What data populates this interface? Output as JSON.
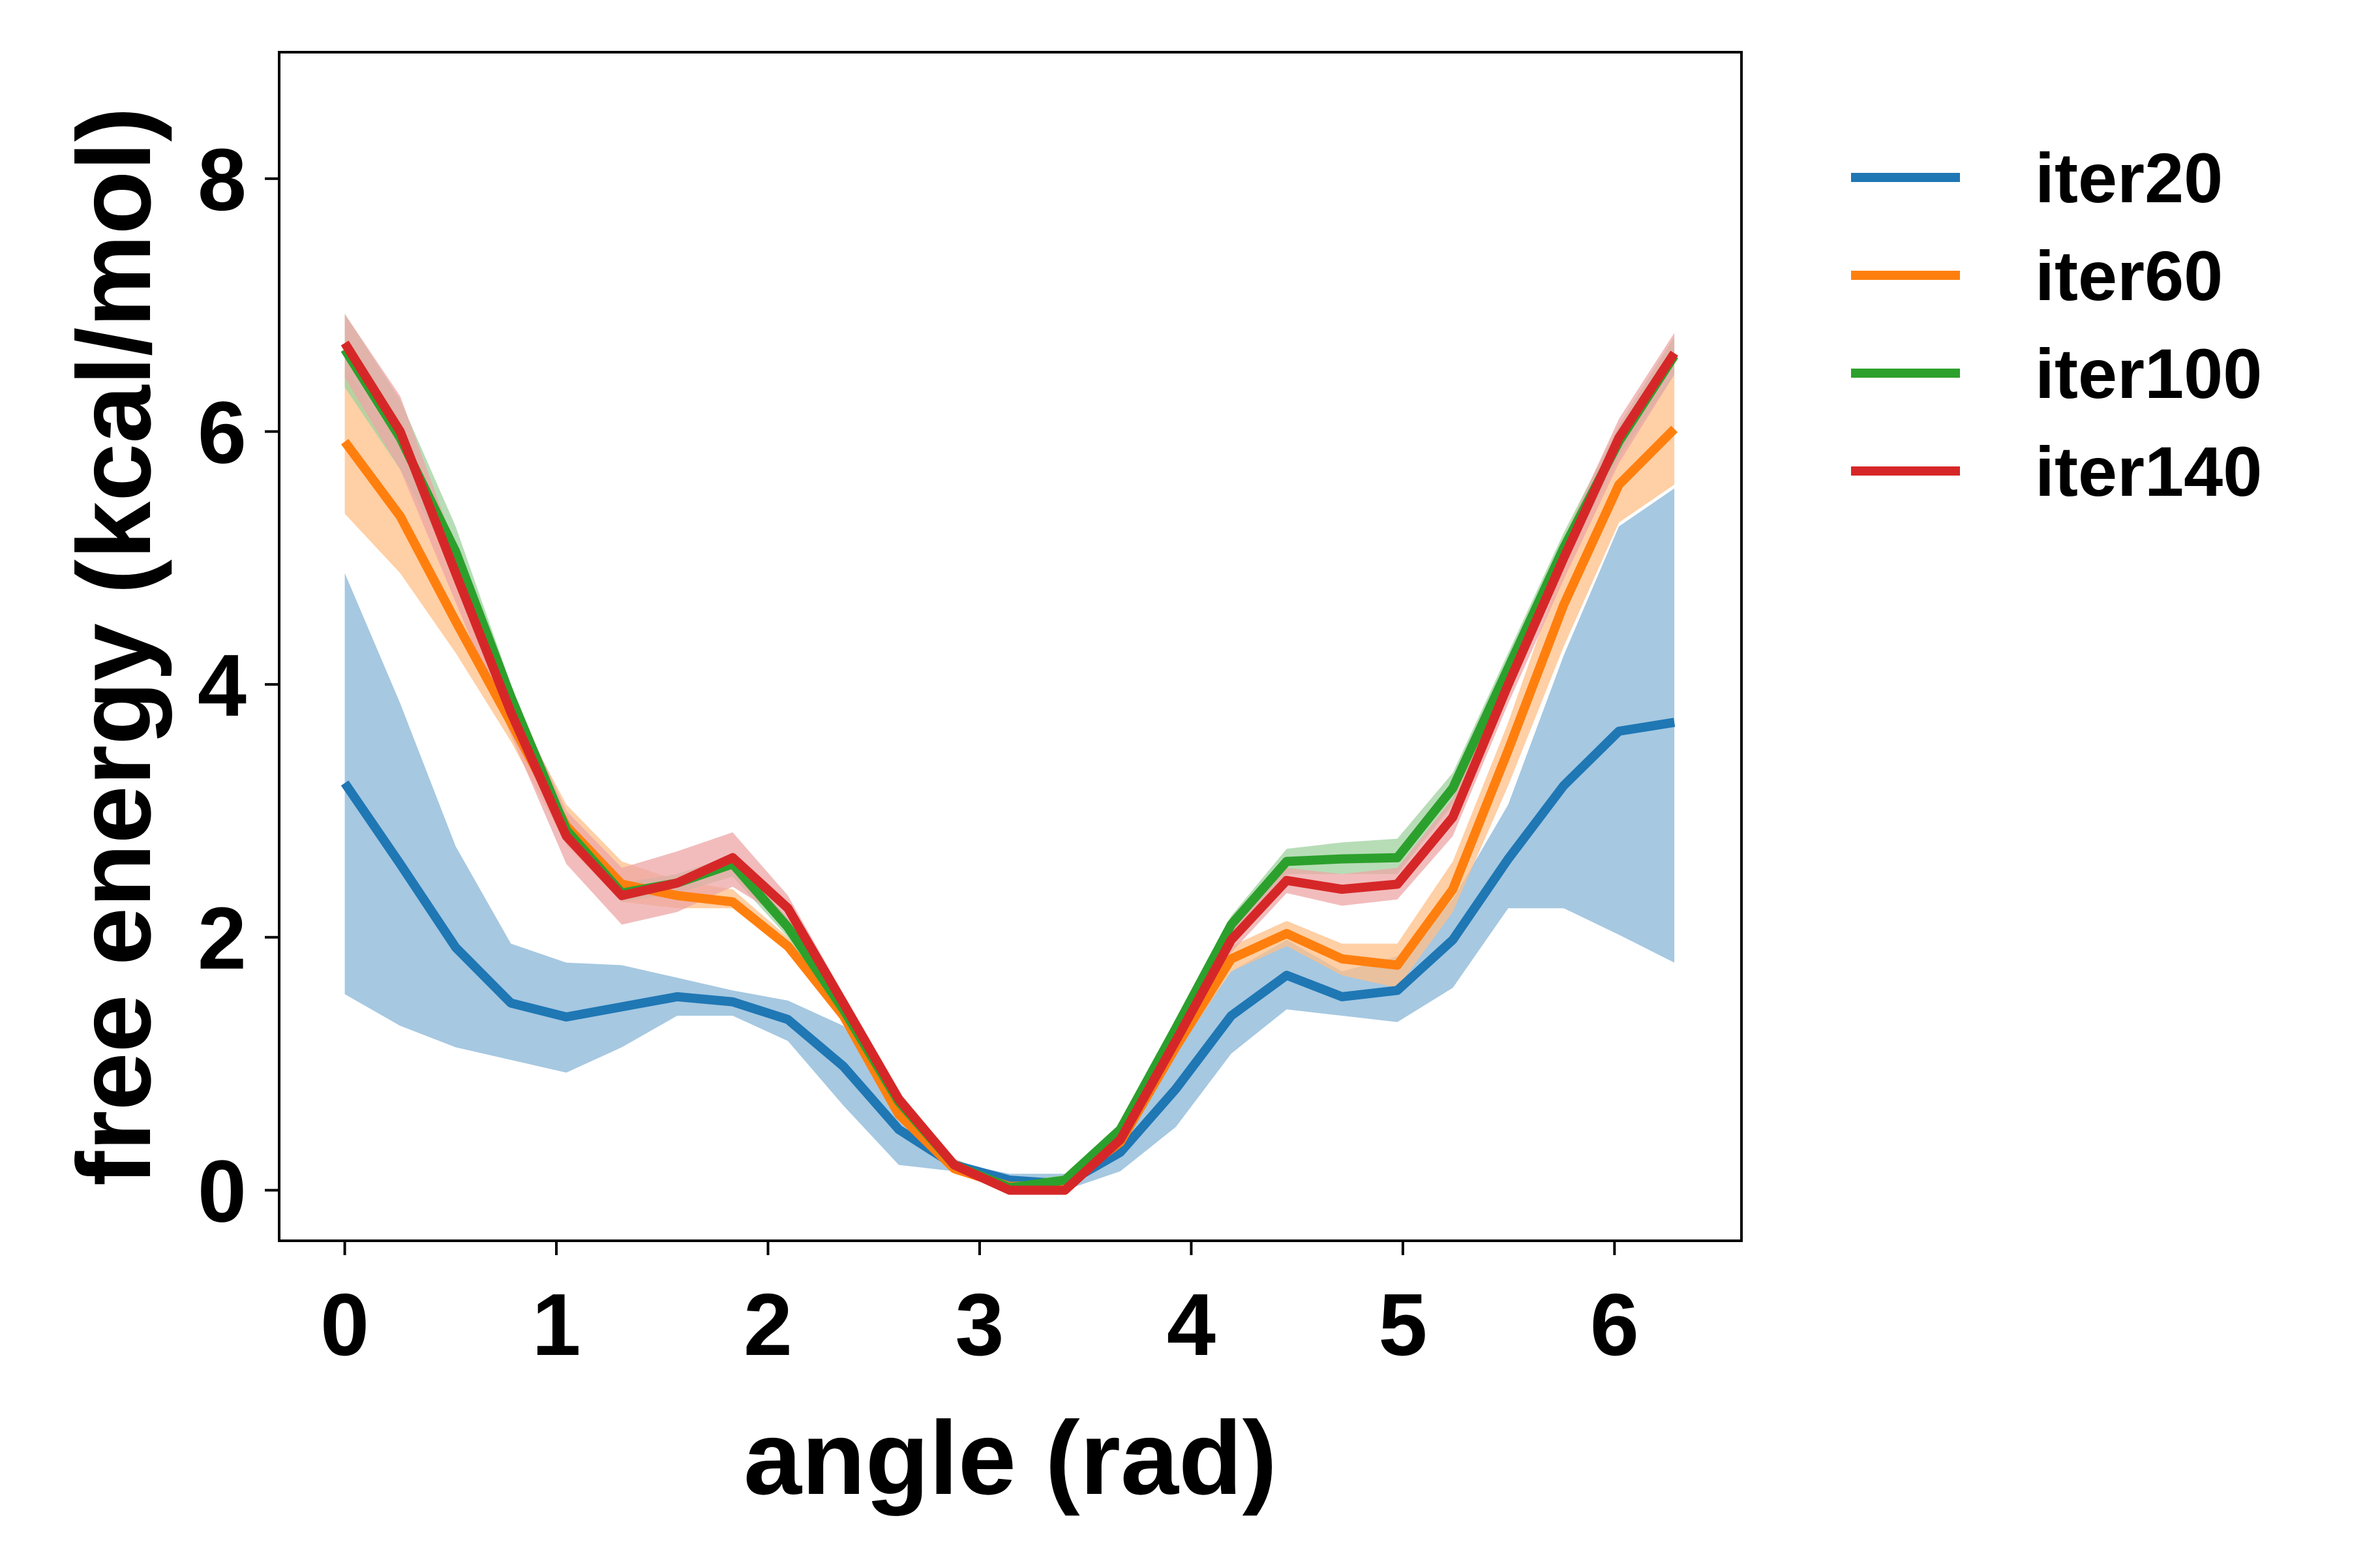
{
  "chart_data": {
    "type": "line",
    "xlabel": "angle (rad)",
    "ylabel": "free energy (kcal/mol)",
    "xlim": [
      -0.31,
      6.6
    ],
    "ylim": [
      -0.4,
      9.0
    ],
    "xticks": [
      0,
      1,
      2,
      3,
      4,
      5,
      6
    ],
    "yticks": [
      0,
      2,
      4,
      6,
      8
    ],
    "grid": false,
    "legend_position": "outside right, top",
    "x": [
      0,
      0.262,
      0.524,
      0.785,
      1.047,
      1.309,
      1.571,
      1.833,
      2.094,
      2.356,
      2.618,
      2.88,
      3.142,
      3.403,
      3.665,
      3.927,
      4.189,
      4.451,
      4.712,
      4.974,
      5.236,
      5.498,
      5.76,
      6.021,
      6.283
    ],
    "series": [
      {
        "name": "iter20",
        "color": "#1f77b4",
        "band_color": "#a6c8e1",
        "values": [
          3.22,
          2.58,
          1.92,
          1.48,
          1.37,
          1.45,
          1.53,
          1.49,
          1.35,
          0.98,
          0.48,
          0.2,
          0.08,
          0.05,
          0.3,
          0.8,
          1.38,
          1.7,
          1.53,
          1.58,
          1.98,
          2.62,
          3.2,
          3.63,
          3.7
        ],
        "lower": [
          1.55,
          1.3,
          1.13,
          1.03,
          0.93,
          1.13,
          1.38,
          1.38,
          1.18,
          0.67,
          0.2,
          0.15,
          0.03,
          0.0,
          0.15,
          0.5,
          1.08,
          1.43,
          1.38,
          1.33,
          1.6,
          2.23,
          2.23,
          2.02,
          1.8
        ],
        "upper": [
          4.88,
          3.85,
          2.72,
          1.95,
          1.8,
          1.78,
          1.68,
          1.58,
          1.5,
          1.3,
          0.68,
          0.22,
          0.13,
          0.13,
          0.43,
          1.13,
          1.73,
          1.98,
          1.73,
          1.85,
          2.3,
          3.05,
          4.23,
          5.25,
          5.55
        ]
      },
      {
        "name": "iter60",
        "color": "#ff7f0e",
        "band_color": "#ffbf87",
        "values": [
          5.92,
          5.33,
          4.5,
          3.7,
          2.88,
          2.42,
          2.33,
          2.28,
          1.93,
          1.38,
          0.6,
          0.17,
          0.03,
          0.05,
          0.38,
          1.13,
          1.83,
          2.03,
          1.83,
          1.78,
          2.38,
          3.48,
          4.63,
          5.58,
          6.02
        ],
        "lower": [
          5.35,
          4.88,
          4.25,
          3.55,
          2.73,
          2.28,
          2.23,
          2.23,
          1.88,
          1.33,
          0.55,
          0.13,
          0.0,
          0.03,
          0.33,
          1.08,
          1.73,
          1.93,
          1.7,
          1.6,
          2.2,
          3.2,
          4.3,
          5.28,
          5.58
        ],
        "upper": [
          6.5,
          5.9,
          4.85,
          3.88,
          3.05,
          2.6,
          2.45,
          2.38,
          2.0,
          1.45,
          0.68,
          0.22,
          0.08,
          0.1,
          0.45,
          1.2,
          1.93,
          2.13,
          1.95,
          1.95,
          2.6,
          3.7,
          4.95,
          5.95,
          6.45
        ]
      },
      {
        "name": "iter100",
        "color": "#2ca02c",
        "band_color": "#9fd29f",
        "values": [
          6.65,
          5.95,
          5.05,
          3.9,
          2.85,
          2.35,
          2.43,
          2.58,
          2.08,
          1.43,
          0.7,
          0.2,
          0.02,
          0.08,
          0.48,
          1.28,
          2.1,
          2.6,
          2.62,
          2.63,
          3.18,
          4.13,
          5.08,
          5.92,
          6.6
        ],
        "lower": [
          6.35,
          5.7,
          4.9,
          3.83,
          2.78,
          2.28,
          2.35,
          2.48,
          2.0,
          1.38,
          0.65,
          0.15,
          0.0,
          0.05,
          0.43,
          1.23,
          2.03,
          2.5,
          2.5,
          2.5,
          3.05,
          4.0,
          4.95,
          5.8,
          6.45
        ],
        "upper": [
          6.93,
          6.25,
          5.25,
          4.0,
          2.93,
          2.43,
          2.5,
          2.65,
          2.15,
          1.5,
          0.75,
          0.25,
          0.07,
          0.12,
          0.53,
          1.35,
          2.17,
          2.7,
          2.75,
          2.78,
          3.3,
          4.25,
          5.2,
          6.05,
          6.75
        ]
      },
      {
        "name": "iter140",
        "color": "#d62728",
        "band_color": "#eea5a5",
        "values": [
          6.7,
          6.0,
          4.88,
          3.78,
          2.8,
          2.33,
          2.43,
          2.63,
          2.23,
          1.48,
          0.72,
          0.2,
          0.0,
          0.0,
          0.4,
          1.18,
          1.98,
          2.45,
          2.38,
          2.42,
          2.95,
          4.0,
          5.0,
          5.95,
          6.62
        ],
        "lower": [
          6.43,
          5.7,
          4.65,
          3.6,
          2.58,
          2.1,
          2.2,
          2.4,
          2.13,
          1.4,
          0.65,
          0.15,
          0.0,
          0.0,
          0.33,
          1.1,
          1.88,
          2.35,
          2.25,
          2.3,
          2.8,
          3.85,
          4.83,
          5.75,
          6.45
        ],
        "upper": [
          6.93,
          6.28,
          5.08,
          3.95,
          3.0,
          2.55,
          2.68,
          2.83,
          2.33,
          1.55,
          0.78,
          0.25,
          0.05,
          0.05,
          0.48,
          1.25,
          2.08,
          2.55,
          2.5,
          2.55,
          3.1,
          4.15,
          5.15,
          6.1,
          6.78
        ]
      }
    ]
  }
}
